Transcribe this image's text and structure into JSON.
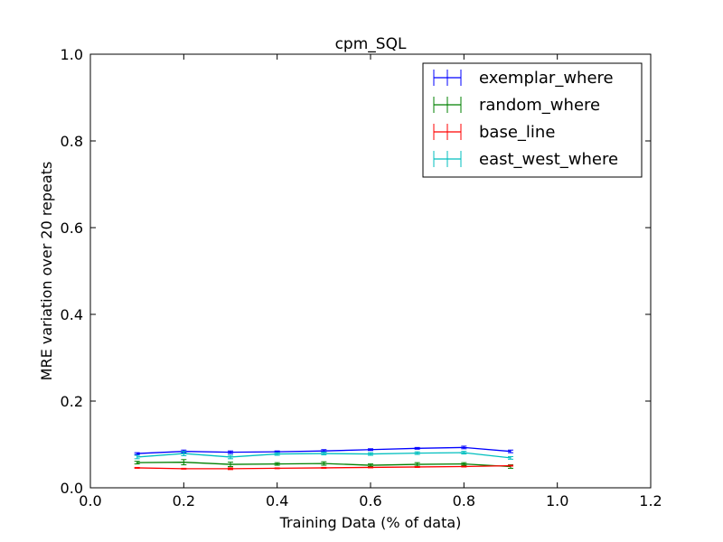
{
  "chart_data": {
    "type": "line",
    "title": "cpm_SQL",
    "xlabel": "Training Data (% of data)",
    "ylabel": "MRE variation over 20 repeats",
    "xlim": [
      0.0,
      1.2
    ],
    "ylim": [
      0.0,
      1.0
    ],
    "xticks": [
      0.0,
      0.2,
      0.4,
      0.6,
      0.8,
      1.0,
      1.2
    ],
    "xtick_labels": [
      "0.0",
      "0.2",
      "0.4",
      "0.6",
      "0.8",
      "1.0",
      "1.2"
    ],
    "yticks": [
      0.0,
      0.2,
      0.4,
      0.6,
      0.8,
      1.0
    ],
    "ytick_labels": [
      "0.0",
      "0.2",
      "0.4",
      "0.6",
      "0.8",
      "1.0"
    ],
    "grid": false,
    "legend_position": "top-right",
    "error_bars": true,
    "x": [
      0.1,
      0.2,
      0.3,
      0.4,
      0.5,
      0.6,
      0.7,
      0.8,
      0.9
    ],
    "series": [
      {
        "name": "exemplar_where",
        "color": "#0000ff",
        "values": [
          0.079,
          0.084,
          0.082,
          0.083,
          0.085,
          0.088,
          0.091,
          0.093,
          0.084
        ],
        "errors": [
          0.002,
          0.003,
          0.003,
          0.002,
          0.003,
          0.002,
          0.002,
          0.003,
          0.003
        ]
      },
      {
        "name": "random_where",
        "color": "#008000",
        "values": [
          0.058,
          0.059,
          0.054,
          0.055,
          0.056,
          0.052,
          0.054,
          0.055,
          0.049
        ],
        "errors": [
          0.003,
          0.006,
          0.005,
          0.003,
          0.004,
          0.003,
          0.004,
          0.003,
          0.004
        ]
      },
      {
        "name": "base_line",
        "color": "#ff0000",
        "values": [
          0.046,
          0.044,
          0.044,
          0.045,
          0.046,
          0.047,
          0.048,
          0.049,
          0.051
        ],
        "errors": [
          0.001,
          0.001,
          0.002,
          0.001,
          0.001,
          0.001,
          0.001,
          0.001,
          0.001
        ]
      },
      {
        "name": "east_west_where",
        "color": "#00bfbf",
        "values": [
          0.071,
          0.079,
          0.071,
          0.078,
          0.079,
          0.078,
          0.08,
          0.081,
          0.069
        ],
        "errors": [
          0.004,
          0.005,
          0.004,
          0.003,
          0.003,
          0.003,
          0.003,
          0.003,
          0.003
        ]
      }
    ]
  }
}
